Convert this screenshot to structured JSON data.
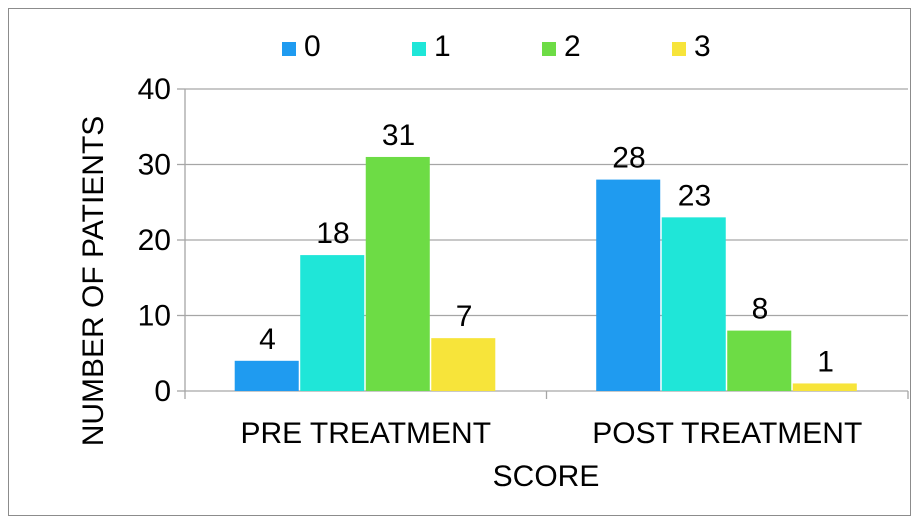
{
  "chart_data": {
    "type": "bar",
    "categories": [
      "PRE TREATMENT",
      "POST TREATMENT"
    ],
    "series": [
      {
        "name": "0",
        "values": [
          4,
          28
        ],
        "color": "#1f9bf0"
      },
      {
        "name": "1",
        "values": [
          18,
          23
        ],
        "color": "#1fe6d8"
      },
      {
        "name": "2",
        "values": [
          31,
          8
        ],
        "color": "#6ddc45"
      },
      {
        "name": "3",
        "values": [
          7,
          1
        ],
        "color": "#f7e43a"
      }
    ],
    "title": "",
    "xlabel": "SCORE",
    "ylabel": "NUMBER OF PATIENTS",
    "ylim": [
      0,
      40
    ],
    "yticks": [
      0,
      10,
      20,
      30,
      40
    ],
    "grid": true,
    "legend": "top",
    "data_labels": true
  }
}
